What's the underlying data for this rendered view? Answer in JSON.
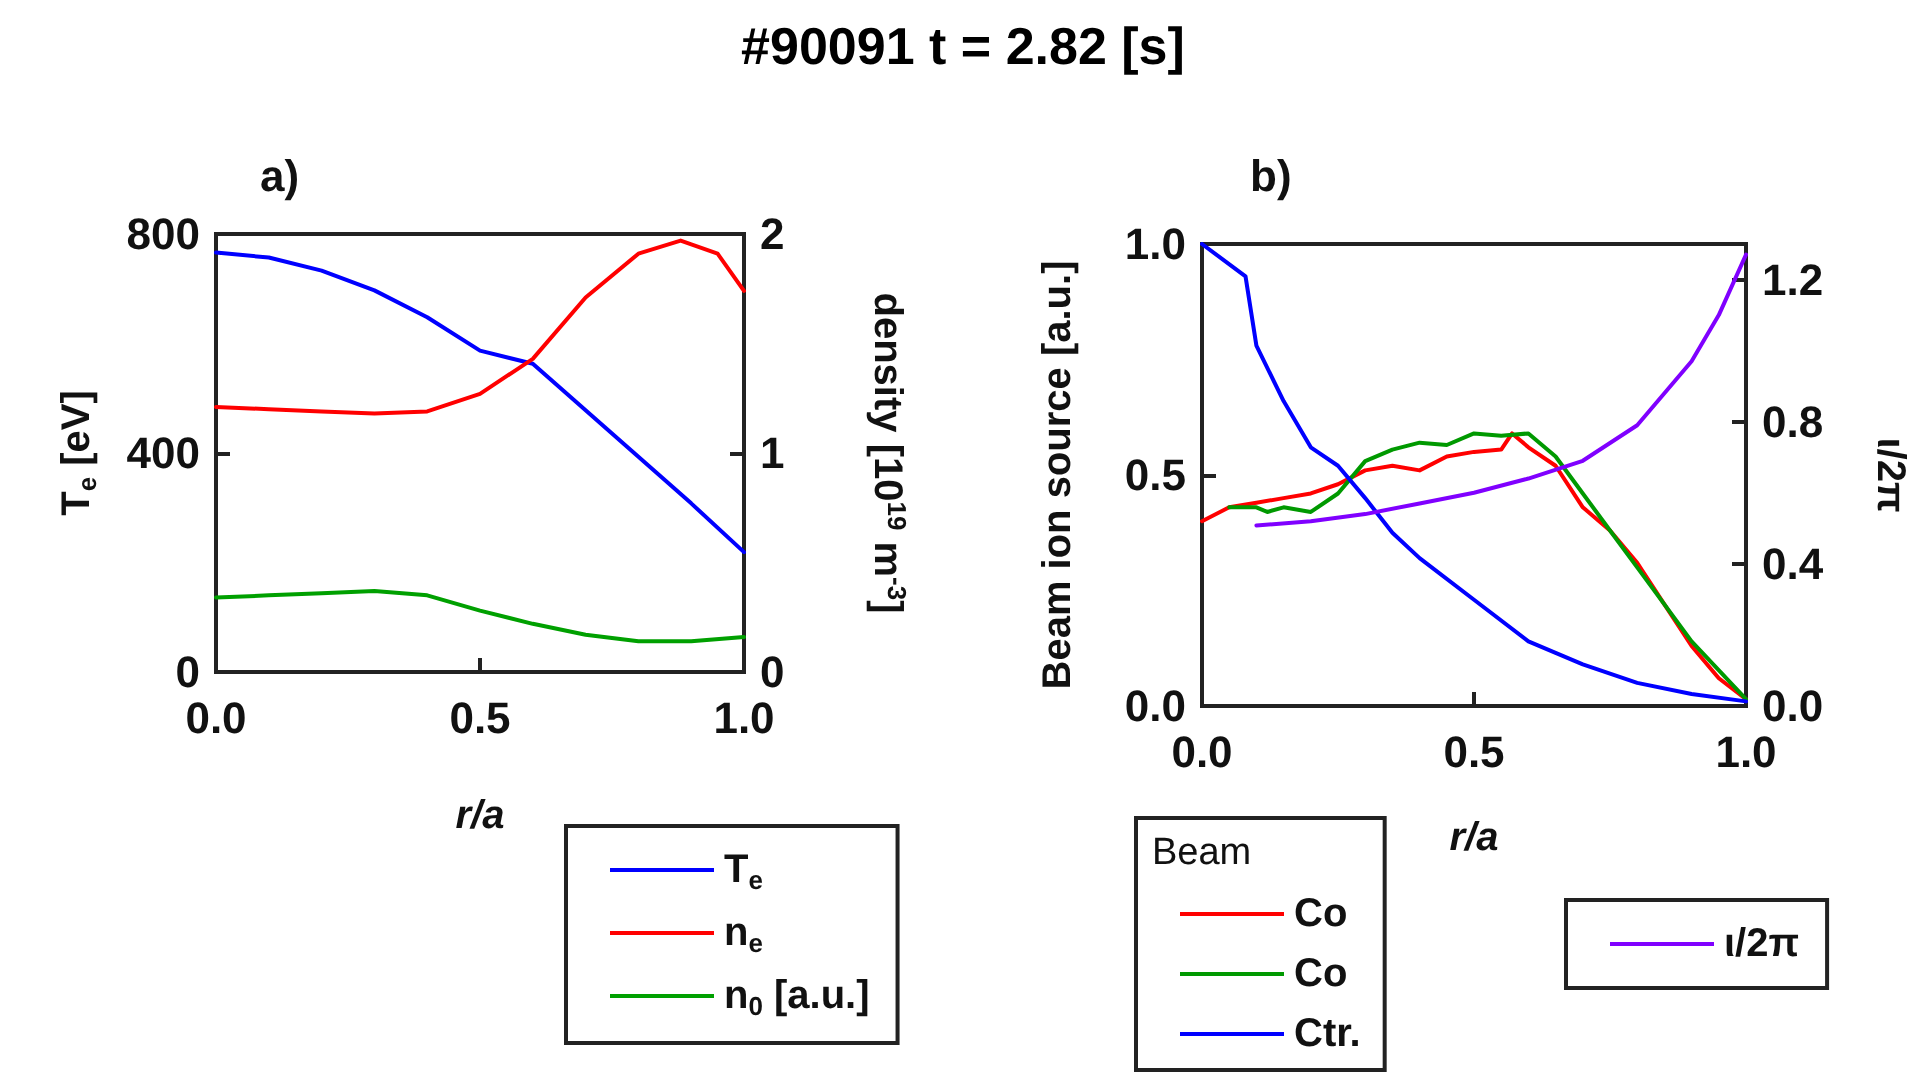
{
  "chart_data": [
    {
      "type": "line",
      "title": "#90091 t = 2.82 [s]",
      "subtitle": "a)",
      "xlabel": "r/a",
      "ylabel": "T$_{e}$ [eV]",
      "y2label": "density [10$^{19}$ m$^{-3}$]",
      "xlim": [
        0,
        1
      ],
      "xticks": [
        {
          "value": 0,
          "label": "0.0"
        },
        {
          "value": 0.5,
          "label": "0.5"
        },
        {
          "value": 1,
          "label": "1.0"
        }
      ],
      "ylim": [
        0,
        800
      ],
      "yticks": [
        0,
        400,
        800
      ],
      "y2lim": [
        0,
        2
      ],
      "y2ticks": [
        0,
        1,
        2
      ],
      "legend": "bottom right",
      "series": [
        {
          "name": "T$_{e}$",
          "color": "#0000ff",
          "x": [
            0,
            0.1,
            0.2,
            0.3,
            0.4,
            0.5,
            0.6,
            0.7,
            0.8,
            0.9,
            1.0
          ],
          "values": [
            766,
            757,
            733,
            697,
            648,
            587,
            563,
            478,
            393,
            308,
            219
          ]
        },
        {
          "name": "n$_{e}$",
          "color": "#ff0000",
          "axis": "y2",
          "x": [
            0,
            0.1,
            0.2,
            0.3,
            0.4,
            0.5,
            0.6,
            0.7,
            0.8,
            0.88,
            0.95,
            1.0
          ],
          "values": [
            1.21,
            1.2,
            1.19,
            1.18,
            1.19,
            1.27,
            1.43,
            1.71,
            1.91,
            1.97,
            1.91,
            1.74
          ]
        },
        {
          "name": "n$_{0}$ [a.u.]",
          "color": "#00a000",
          "axis": "y2",
          "x": [
            0,
            0.1,
            0.2,
            0.3,
            0.4,
            0.5,
            0.6,
            0.7,
            0.8,
            0.9,
            1.0
          ],
          "values": [
            0.34,
            0.35,
            0.36,
            0.37,
            0.35,
            0.28,
            0.22,
            0.17,
            0.14,
            0.14,
            0.16
          ]
        }
      ]
    },
    {
      "type": "line",
      "subtitle": "b)",
      "xlabel": "r/a",
      "ylabel": "Beam ion source [a.u.]",
      "y2label": "ι/2π",
      "legend": "bottom",
      "legend_title": "Beam",
      "xlim": [
        0,
        1
      ],
      "xticks": [
        {
          "value": 0,
          "label": "0.0"
        },
        {
          "value": 0.5,
          "label": "0.5"
        },
        {
          "value": 1,
          "label": "1.0"
        }
      ],
      "ylim": [
        0,
        1
      ],
      "yticks": [
        {
          "value": 0,
          "label": "0.0"
        },
        {
          "value": 0.5,
          "label": "0.5"
        },
        {
          "value": 1,
          "label": "1.0"
        }
      ],
      "y2lim": [
        0,
        1.3
      ],
      "y2ticks": [
        {
          "value": 0,
          "label": "0.0"
        },
        {
          "value": 0.4,
          "label": "0.4"
        },
        {
          "value": 0.8,
          "label": "0.8"
        },
        {
          "value": 1.2,
          "label": "1.2"
        }
      ],
      "series": [
        {
          "name": "Co",
          "color": "#ff0000",
          "x": [
            0,
            0.05,
            0.1,
            0.15,
            0.2,
            0.25,
            0.3,
            0.35,
            0.4,
            0.45,
            0.5,
            0.55,
            0.57,
            0.6,
            0.65,
            0.7,
            0.75,
            0.8,
            0.85,
            0.9,
            0.95,
            1.0
          ],
          "values": [
            0.4,
            0.43,
            0.44,
            0.45,
            0.46,
            0.48,
            0.51,
            0.52,
            0.51,
            0.54,
            0.55,
            0.555,
            0.59,
            0.56,
            0.52,
            0.43,
            0.38,
            0.31,
            0.22,
            0.13,
            0.06,
            0.015
          ]
        },
        {
          "name": "Co",
          "color": "#009900",
          "x": [
            0.05,
            0.1,
            0.12,
            0.15,
            0.2,
            0.25,
            0.3,
            0.35,
            0.4,
            0.45,
            0.5,
            0.55,
            0.6,
            0.65,
            0.7,
            0.75,
            0.8,
            0.9,
            1.0
          ],
          "values": [
            0.43,
            0.43,
            0.42,
            0.43,
            0.42,
            0.46,
            0.53,
            0.555,
            0.57,
            0.565,
            0.59,
            0.585,
            0.59,
            0.54,
            0.46,
            0.38,
            0.3,
            0.14,
            0.015
          ]
        },
        {
          "name": "Ctr.",
          "color": "#0000ff",
          "x": [
            0,
            0.08,
            0.1,
            0.15,
            0.2,
            0.25,
            0.3,
            0.35,
            0.4,
            0.5,
            0.6,
            0.65,
            0.7,
            0.8,
            0.9,
            1.0
          ],
          "values": [
            1.0,
            0.93,
            0.78,
            0.66,
            0.56,
            0.52,
            0.45,
            0.375,
            0.32,
            0.23,
            0.14,
            0.115,
            0.09,
            0.05,
            0.026,
            0.01
          ]
        },
        {
          "name": "ι/2π",
          "color": "#8000ff",
          "axis": "y2",
          "x": [
            0.1,
            0.2,
            0.3,
            0.4,
            0.5,
            0.6,
            0.7,
            0.8,
            0.9,
            0.95,
            1.0
          ],
          "values": [
            0.508,
            0.52,
            0.54,
            0.57,
            0.6,
            0.64,
            0.69,
            0.79,
            0.97,
            1.1,
            1.27
          ]
        }
      ]
    }
  ]
}
